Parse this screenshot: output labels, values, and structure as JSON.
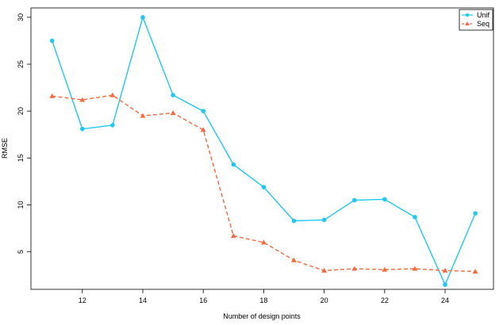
{
  "chart_data": {
    "type": "line",
    "title": "",
    "xlabel": "Number of design points",
    "ylabel": "RMSE",
    "xlim": [
      10.3,
      25.6
    ],
    "ylim": [
      1.0,
      31.0
    ],
    "xticks": [
      12,
      14,
      16,
      18,
      20,
      22,
      24
    ],
    "yticks": [
      5,
      10,
      15,
      20,
      25,
      30
    ],
    "grid": false,
    "legend_position": "top-right",
    "x": [
      11,
      12,
      13,
      14,
      15,
      16,
      17,
      18,
      19,
      20,
      21,
      22,
      23,
      24,
      25
    ],
    "series": [
      {
        "name": "Unif",
        "color": "#1ec8f0",
        "line_style": "solid",
        "marker": "circle",
        "values": [
          27.5,
          18.1,
          18.5,
          30.0,
          21.7,
          20.0,
          14.3,
          11.9,
          8.3,
          8.4,
          10.5,
          10.6,
          8.7,
          1.5,
          9.1
        ]
      },
      {
        "name": "Seq",
        "color": "#f26a3d",
        "line_style": "dashed",
        "marker": "triangle",
        "values": [
          21.6,
          21.2,
          21.7,
          19.5,
          19.8,
          18.0,
          6.7,
          6.0,
          4.1,
          3.0,
          3.2,
          3.1,
          3.2,
          3.0,
          2.9
        ]
      }
    ]
  }
}
